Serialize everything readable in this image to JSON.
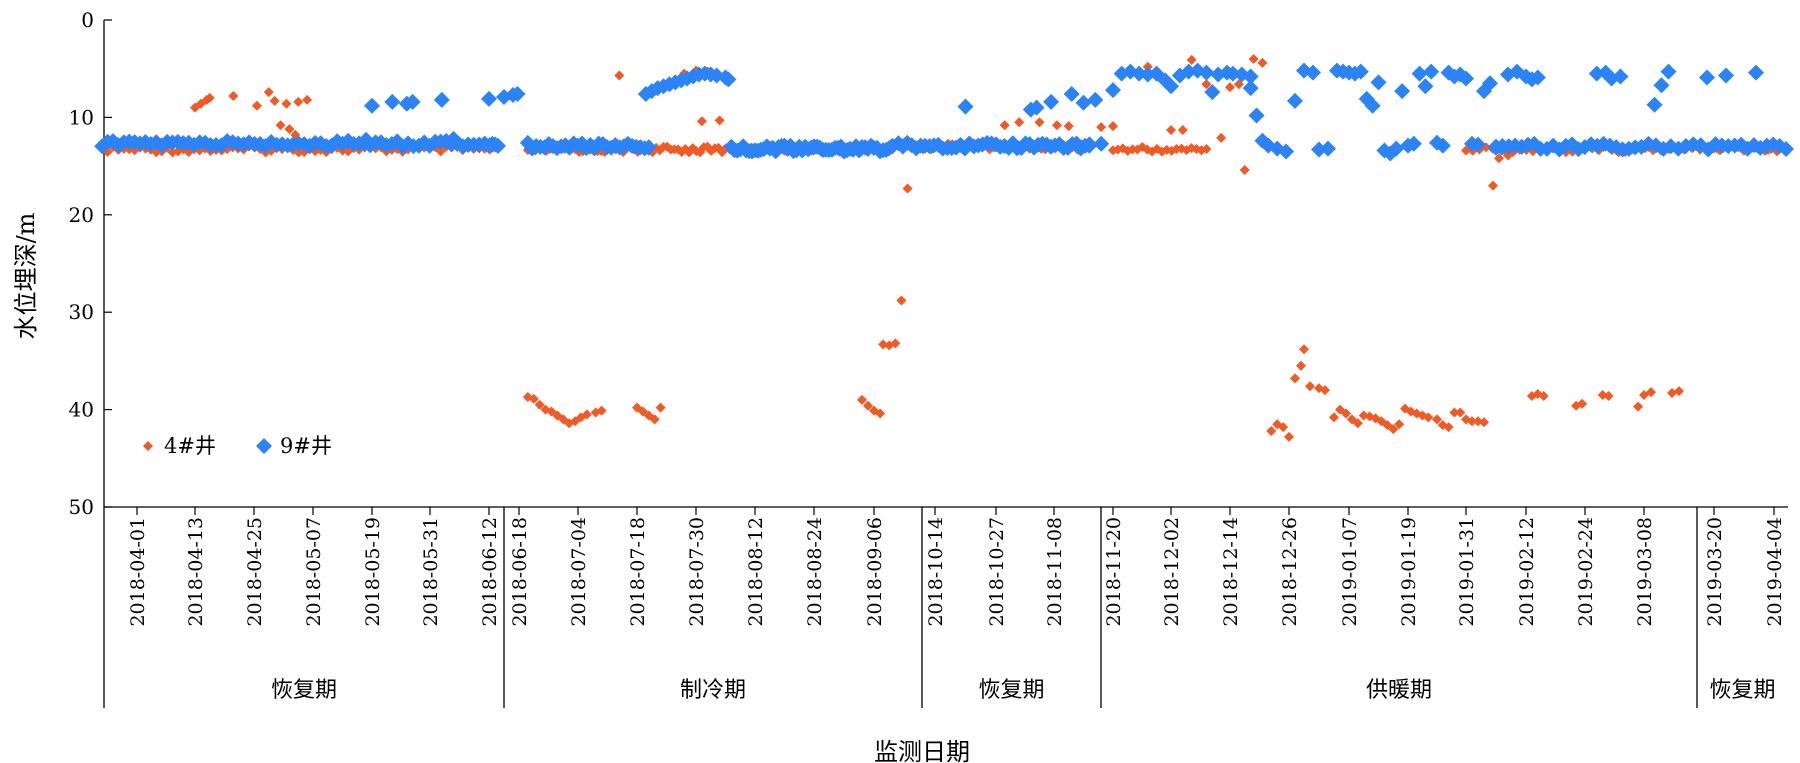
{
  "chart_data": {
    "type": "scatter",
    "title": "",
    "xlabel": "监测日期",
    "ylabel": "水位埋深/m",
    "ylim": [
      0,
      50
    ],
    "y_inverted": true,
    "y_ticks": [
      0,
      10,
      20,
      30,
      40,
      50
    ],
    "legend_position": "lower-left",
    "x_tick_labels": [
      "2018-04-01",
      "2018-04-13",
      "2018-04-25",
      "2018-05-07",
      "2018-05-19",
      "2018-05-31",
      "2018-06-12",
      "2018-06-18",
      "2018-07-04",
      "2018-07-18",
      "2018-07-30",
      "2018-08-12",
      "2018-08-24",
      "2018-09-06",
      "2018-10-14",
      "2018-10-27",
      "2018-11-08",
      "2018-11-20",
      "2018-12-02",
      "2018-12-14",
      "2018-12-26",
      "2019-01-07",
      "2019-01-19",
      "2019-01-31",
      "2019-02-12",
      "2019-02-24",
      "2019-03-08",
      "2019-03-20",
      "2019-04-04"
    ],
    "periods": [
      {
        "label": "恢复期",
        "start_tick": 0,
        "end_tick": 6
      },
      {
        "label": "制冷期",
        "start_tick": 7,
        "end_tick": 13
      },
      {
        "label": "恢复期",
        "start_tick": 14,
        "end_tick": 16
      },
      {
        "label": "供暖期",
        "start_tick": 17,
        "end_tick": 26
      },
      {
        "label": "恢复期",
        "start_tick": 27,
        "end_tick": 28
      }
    ],
    "series": [
      {
        "name": "4#井",
        "color": "#f05a24",
        "segments": [
          {
            "t0": -0.6,
            "t1": 6.3,
            "y": 13.3,
            "n": 75
          },
          {
            "t0": 7.15,
            "t1": 13.3,
            "y": 13.3,
            "n": 100
          },
          {
            "t0": 13.6,
            "t1": 16.6,
            "y": 13.0,
            "n": 45
          },
          {
            "t0": 17.0,
            "t1": 18.6,
            "y": 13.3,
            "n": 20
          },
          {
            "t0": 23.0,
            "t1": 26.8,
            "y": 13.3,
            "n": 35
          },
          {
            "t0": 27.0,
            "t1": 28.2,
            "y": 13.2,
            "n": 25
          }
        ],
        "points": [
          [
            0.0,
            13.1
          ],
          [
            1.0,
            9.0
          ],
          [
            1.1,
            8.6
          ],
          [
            1.2,
            8.2
          ],
          [
            1.25,
            8.0
          ],
          [
            1.65,
            7.8
          ],
          [
            2.05,
            8.8
          ],
          [
            2.25,
            7.4
          ],
          [
            2.35,
            8.3
          ],
          [
            2.45,
            10.8
          ],
          [
            2.55,
            8.6
          ],
          [
            2.6,
            11.2
          ],
          [
            2.7,
            11.8
          ],
          [
            2.75,
            8.4
          ],
          [
            2.9,
            8.2
          ],
          [
            7.15,
            38.7
          ],
          [
            7.25,
            38.9
          ],
          [
            7.35,
            39.5
          ],
          [
            7.45,
            40.0
          ],
          [
            7.55,
            40.2
          ],
          [
            7.65,
            40.6
          ],
          [
            7.75,
            41.0
          ],
          [
            7.85,
            41.4
          ],
          [
            7.95,
            41.2
          ],
          [
            8.05,
            40.8
          ],
          [
            8.15,
            40.5
          ],
          [
            8.3,
            40.3
          ],
          [
            8.4,
            40.1
          ],
          [
            8.7,
            5.7
          ],
          [
            9.0,
            39.8
          ],
          [
            9.1,
            40.2
          ],
          [
            9.2,
            40.6
          ],
          [
            9.3,
            41.0
          ],
          [
            9.4,
            39.8
          ],
          [
            9.8,
            5.5
          ],
          [
            10.0,
            5.2
          ],
          [
            10.1,
            10.4
          ],
          [
            10.2,
            5.3
          ],
          [
            10.4,
            10.3
          ],
          [
            12.8,
            39.0
          ],
          [
            12.9,
            39.6
          ],
          [
            13.0,
            40.1
          ],
          [
            13.1,
            40.4
          ],
          [
            13.15,
            33.3
          ],
          [
            13.25,
            33.4
          ],
          [
            13.35,
            33.2
          ],
          [
            13.45,
            28.8
          ],
          [
            13.55,
            17.3
          ],
          [
            15.15,
            10.8
          ],
          [
            15.4,
            10.5
          ],
          [
            15.75,
            10.5
          ],
          [
            16.05,
            10.8
          ],
          [
            16.25,
            10.9
          ],
          [
            16.8,
            11.0
          ],
          [
            17.0,
            10.9
          ],
          [
            17.6,
            4.8
          ],
          [
            18.0,
            11.3
          ],
          [
            18.2,
            11.3
          ],
          [
            18.35,
            4.1
          ],
          [
            18.6,
            6.6
          ],
          [
            18.85,
            12.1
          ],
          [
            19.0,
            6.9
          ],
          [
            19.15,
            6.6
          ],
          [
            19.25,
            15.4
          ],
          [
            19.4,
            4.0
          ],
          [
            19.55,
            4.4
          ],
          [
            19.7,
            42.2
          ],
          [
            19.8,
            41.5
          ],
          [
            19.9,
            41.8
          ],
          [
            20.0,
            42.8
          ],
          [
            20.1,
            36.8
          ],
          [
            20.2,
            35.5
          ],
          [
            20.25,
            33.8
          ],
          [
            20.35,
            37.6
          ],
          [
            20.5,
            37.8
          ],
          [
            20.6,
            38.0
          ],
          [
            20.75,
            40.8
          ],
          [
            20.85,
            40.0
          ],
          [
            20.95,
            40.4
          ],
          [
            21.05,
            41.0
          ],
          [
            21.15,
            41.4
          ],
          [
            21.25,
            40.6
          ],
          [
            21.35,
            40.7
          ],
          [
            21.45,
            40.9
          ],
          [
            21.55,
            41.2
          ],
          [
            21.65,
            41.6
          ],
          [
            21.75,
            42.0
          ],
          [
            21.85,
            41.5
          ],
          [
            21.95,
            39.9
          ],
          [
            22.05,
            40.2
          ],
          [
            22.15,
            40.4
          ],
          [
            22.25,
            40.6
          ],
          [
            22.35,
            40.8
          ],
          [
            22.5,
            41.0
          ],
          [
            22.6,
            41.6
          ],
          [
            22.7,
            41.8
          ],
          [
            22.8,
            40.3
          ],
          [
            22.9,
            40.3
          ],
          [
            23.0,
            41.0
          ],
          [
            23.1,
            41.2
          ],
          [
            23.2,
            41.2
          ],
          [
            23.3,
            41.3
          ],
          [
            23.45,
            17.0
          ],
          [
            23.55,
            14.2
          ],
          [
            23.7,
            13.9
          ],
          [
            24.1,
            38.6
          ],
          [
            24.2,
            38.4
          ],
          [
            24.3,
            38.6
          ],
          [
            24.85,
            39.6
          ],
          [
            24.95,
            39.4
          ],
          [
            25.3,
            38.5
          ],
          [
            25.4,
            38.6
          ],
          [
            25.9,
            39.7
          ],
          [
            26.0,
            38.5
          ],
          [
            26.1,
            38.2
          ],
          [
            26.4,
            38.3
          ],
          [
            26.5,
            38.1
          ]
        ]
      },
      {
        "name": "9#井",
        "color": "#2b83f6",
        "segments": [
          {
            "t0": -0.6,
            "t1": 6.3,
            "y": 12.7,
            "n": 75
          },
          {
            "t0": 7.15,
            "t1": 9.2,
            "y": 12.9,
            "n": 30
          },
          {
            "t0": 10.6,
            "t1": 13.3,
            "y": 13.2,
            "n": 55
          },
          {
            "t0": 13.4,
            "t1": 16.6,
            "y": 12.9,
            "n": 45
          },
          {
            "t0": 23.5,
            "t1": 28.2,
            "y": 13.0,
            "n": 45
          }
        ],
        "points": [
          [
            3.9,
            12.3
          ],
          [
            4.0,
            8.8
          ],
          [
            4.35,
            8.4
          ],
          [
            4.6,
            8.6
          ],
          [
            4.7,
            8.4
          ],
          [
            5.2,
            8.2
          ],
          [
            5.4,
            12.2
          ],
          [
            6.0,
            8.1
          ],
          [
            6.5,
            7.9
          ],
          [
            6.8,
            7.7
          ],
          [
            6.95,
            7.6
          ],
          [
            9.15,
            7.6
          ],
          [
            9.25,
            7.3
          ],
          [
            9.35,
            7.0
          ],
          [
            9.45,
            6.8
          ],
          [
            9.55,
            6.6
          ],
          [
            9.65,
            6.4
          ],
          [
            9.75,
            6.2
          ],
          [
            9.85,
            6.0
          ],
          [
            9.95,
            5.8
          ],
          [
            10.05,
            5.6
          ],
          [
            10.15,
            5.5
          ],
          [
            10.25,
            5.6
          ],
          [
            10.35,
            5.7
          ],
          [
            10.5,
            5.9
          ],
          [
            10.55,
            6.1
          ],
          [
            14.5,
            8.9
          ],
          [
            15.6,
            9.2
          ],
          [
            15.7,
            9.0
          ],
          [
            15.95,
            8.4
          ],
          [
            16.3,
            7.6
          ],
          [
            16.5,
            8.5
          ],
          [
            16.7,
            8.2
          ],
          [
            16.6,
            12.9
          ],
          [
            16.8,
            12.7
          ],
          [
            17.0,
            7.2
          ],
          [
            17.15,
            5.5
          ],
          [
            17.3,
            5.3
          ],
          [
            17.45,
            5.5
          ],
          [
            17.6,
            5.6
          ],
          [
            17.75,
            5.5
          ],
          [
            17.9,
            6.2
          ],
          [
            18.0,
            6.8
          ],
          [
            18.15,
            5.7
          ],
          [
            18.3,
            5.3
          ],
          [
            18.45,
            5.2
          ],
          [
            18.6,
            5.4
          ],
          [
            18.7,
            7.4
          ],
          [
            18.8,
            5.6
          ],
          [
            18.95,
            5.4
          ],
          [
            19.05,
            5.5
          ],
          [
            19.2,
            5.6
          ],
          [
            19.35,
            5.8
          ],
          [
            19.35,
            7.0
          ],
          [
            19.45,
            9.8
          ],
          [
            19.55,
            12.4
          ],
          [
            19.65,
            12.9
          ],
          [
            19.8,
            13.2
          ],
          [
            19.95,
            13.5
          ],
          [
            20.1,
            8.3
          ],
          [
            20.25,
            5.2
          ],
          [
            20.4,
            5.4
          ],
          [
            20.5,
            13.3
          ],
          [
            20.65,
            13.2
          ],
          [
            20.8,
            5.2
          ],
          [
            20.9,
            5.3
          ],
          [
            21.0,
            5.4
          ],
          [
            21.1,
            5.5
          ],
          [
            21.2,
            5.3
          ],
          [
            21.3,
            8.1
          ],
          [
            21.4,
            8.8
          ],
          [
            21.5,
            6.4
          ],
          [
            21.6,
            13.4
          ],
          [
            21.7,
            13.7
          ],
          [
            21.8,
            13.2
          ],
          [
            21.9,
            7.3
          ],
          [
            22.0,
            12.9
          ],
          [
            22.1,
            12.7
          ],
          [
            22.2,
            5.5
          ],
          [
            22.3,
            6.8
          ],
          [
            22.4,
            5.3
          ],
          [
            22.5,
            12.6
          ],
          [
            22.6,
            12.9
          ],
          [
            22.7,
            5.4
          ],
          [
            22.8,
            5.8
          ],
          [
            22.9,
            5.6
          ],
          [
            23.0,
            6.0
          ],
          [
            23.1,
            12.7
          ],
          [
            23.2,
            12.8
          ],
          [
            23.3,
            7.3
          ],
          [
            23.4,
            6.5
          ],
          [
            23.5,
            13.0
          ],
          [
            23.6,
            13.1
          ],
          [
            23.7,
            5.6
          ],
          [
            23.85,
            5.3
          ],
          [
            24.0,
            5.8
          ],
          [
            24.1,
            6.1
          ],
          [
            24.2,
            5.9
          ],
          [
            25.2,
            5.5
          ],
          [
            25.35,
            5.4
          ],
          [
            25.45,
            6.0
          ],
          [
            25.6,
            5.8
          ],
          [
            26.15,
            8.7
          ],
          [
            26.25,
            6.7
          ],
          [
            26.35,
            5.3
          ],
          [
            26.9,
            5.9
          ],
          [
            27.2,
            5.7
          ],
          [
            27.7,
            5.4
          ]
        ]
      }
    ]
  }
}
